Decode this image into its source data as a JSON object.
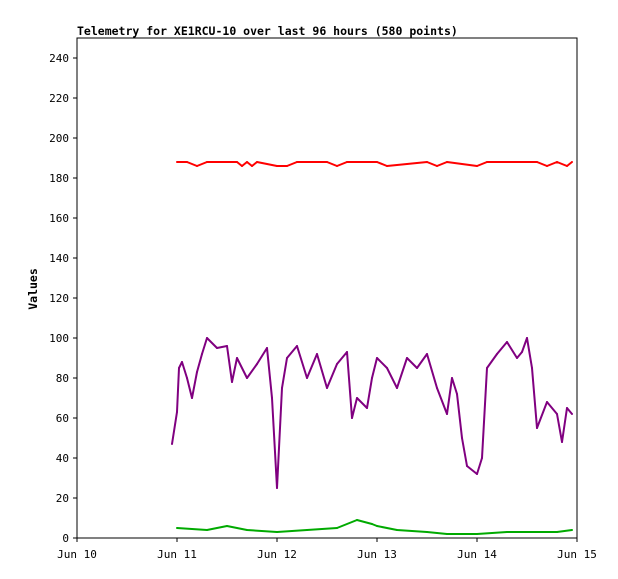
{
  "chart_data": {
    "type": "line",
    "title": "Telemetry for XE1RCU-10 over last 96 hours (580 points)",
    "xlabel": "",
    "ylabel": "Values",
    "x_axis": {
      "type": "date",
      "range": [
        "Jun 10",
        "Jun 15"
      ],
      "ticks": [
        "Jun 10",
        "Jun 11",
        "Jun 12",
        "Jun 13",
        "Jun 14",
        "Jun 15"
      ]
    },
    "y_axis": {
      "range": [
        0,
        250
      ],
      "ticks": [
        0,
        20,
        40,
        60,
        80,
        100,
        120,
        140,
        160,
        180,
        200,
        220,
        240
      ]
    },
    "grid": false,
    "legend": "none",
    "series": [
      {
        "color": "#ff0000",
        "style": "line with small dips",
        "points": [
          [
            "Jun 11",
            188
          ],
          [
            "Jun 11.1",
            188
          ],
          [
            "Jun 11.2",
            186
          ],
          [
            "Jun 11.3",
            188
          ],
          [
            "Jun 11.6",
            188
          ],
          [
            "Jun 11.65",
            186
          ],
          [
            "Jun 11.7",
            188
          ],
          [
            "Jun 11.75",
            186
          ],
          [
            "Jun 11.8",
            188
          ],
          [
            "Jun 12",
            186
          ],
          [
            "Jun 12.1",
            186
          ],
          [
            "Jun 12.2",
            188
          ],
          [
            "Jun 12.5",
            188
          ],
          [
            "Jun 12.6",
            186
          ],
          [
            "Jun 12.7",
            188
          ],
          [
            "Jun 13",
            188
          ],
          [
            "Jun 13.1",
            186
          ],
          [
            "Jun 13.5",
            188
          ],
          [
            "Jun 13.6",
            186
          ],
          [
            "Jun 13.7",
            188
          ],
          [
            "Jun 14",
            186
          ],
          [
            "Jun 14.1",
            188
          ],
          [
            "Jun 14.6",
            188
          ],
          [
            "Jun 14.7",
            186
          ],
          [
            "Jun 14.8",
            188
          ],
          [
            "Jun 14.9",
            186
          ],
          [
            "Jun 14.95",
            188
          ]
        ]
      },
      {
        "color": "#800080",
        "style": "line",
        "points": [
          [
            "Jun 10.95",
            47
          ],
          [
            "Jun 11",
            63
          ],
          [
            "Jun 11.02",
            85
          ],
          [
            "Jun 11.05",
            88
          ],
          [
            "Jun 11.1",
            80
          ],
          [
            "Jun 11.15",
            70
          ],
          [
            "Jun 11.2",
            83
          ],
          [
            "Jun 11.25",
            92
          ],
          [
            "Jun 11.3",
            100
          ],
          [
            "Jun 11.4",
            95
          ],
          [
            "Jun 11.5",
            96
          ],
          [
            "Jun 11.55",
            78
          ],
          [
            "Jun 11.6",
            90
          ],
          [
            "Jun 11.7",
            80
          ],
          [
            "Jun 11.8",
            87
          ],
          [
            "Jun 11.9",
            95
          ],
          [
            "Jun 11.95",
            70
          ],
          [
            "Jun 12",
            25
          ],
          [
            "Jun 12.05",
            75
          ],
          [
            "Jun 12.1",
            90
          ],
          [
            "Jun 12.2",
            96
          ],
          [
            "Jun 12.3",
            80
          ],
          [
            "Jun 12.4",
            92
          ],
          [
            "Jun 12.5",
            75
          ],
          [
            "Jun 12.6",
            87
          ],
          [
            "Jun 12.7",
            93
          ],
          [
            "Jun 12.75",
            60
          ],
          [
            "Jun 12.8",
            70
          ],
          [
            "Jun 12.9",
            65
          ],
          [
            "Jun 12.95",
            80
          ],
          [
            "Jun 13",
            90
          ],
          [
            "Jun 13.1",
            85
          ],
          [
            "Jun 13.2",
            75
          ],
          [
            "Jun 13.3",
            90
          ],
          [
            "Jun 13.4",
            85
          ],
          [
            "Jun 13.5",
            92
          ],
          [
            "Jun 13.6",
            75
          ],
          [
            "Jun 13.7",
            62
          ],
          [
            "Jun 13.75",
            80
          ],
          [
            "Jun 13.8",
            72
          ],
          [
            "Jun 13.85",
            50
          ],
          [
            "Jun 13.9",
            36
          ],
          [
            "Jun 14",
            32
          ],
          [
            "Jun 14.05",
            40
          ],
          [
            "Jun 14.1",
            85
          ],
          [
            "Jun 14.2",
            92
          ],
          [
            "Jun 14.3",
            98
          ],
          [
            "Jun 14.4",
            90
          ],
          [
            "Jun 14.45",
            93
          ],
          [
            "Jun 14.5",
            100
          ],
          [
            "Jun 14.55",
            85
          ],
          [
            "Jun 14.6",
            55
          ],
          [
            "Jun 14.7",
            68
          ],
          [
            "Jun 14.8",
            62
          ],
          [
            "Jun 14.85",
            48
          ],
          [
            "Jun 14.9",
            65
          ],
          [
            "Jun 14.95",
            62
          ]
        ]
      },
      {
        "color": "#00aa00",
        "style": "line",
        "points": [
          [
            "Jun 11",
            5
          ],
          [
            "Jun 11.3",
            4
          ],
          [
            "Jun 11.5",
            6
          ],
          [
            "Jun 11.7",
            4
          ],
          [
            "Jun 12",
            3
          ],
          [
            "Jun 12.3",
            4
          ],
          [
            "Jun 12.6",
            5
          ],
          [
            "Jun 12.8",
            9
          ],
          [
            "Jun 12.95",
            7
          ],
          [
            "Jun 13",
            6
          ],
          [
            "Jun 13.2",
            4
          ],
          [
            "Jun 13.5",
            3
          ],
          [
            "Jun 13.7",
            2
          ],
          [
            "Jun 14",
            2
          ],
          [
            "Jun 14.3",
            3
          ],
          [
            "Jun 14.6",
            3
          ],
          [
            "Jun 14.8",
            3
          ],
          [
            "Jun 14.95",
            4
          ]
        ]
      }
    ]
  }
}
